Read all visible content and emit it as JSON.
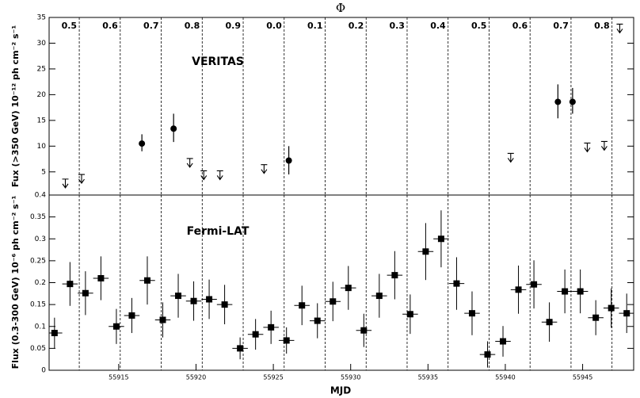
{
  "chart_data": [
    {
      "type": "scatter",
      "title": "VERITAS",
      "ylabel": "Fux (>350 GeV) 10⁻¹² ph cm⁻² s⁻¹",
      "top_axis_label": "Φ",
      "xlim": [
        55910.5,
        55948.3
      ],
      "ylim": [
        0.5,
        35
      ],
      "yticks": [
        5,
        10,
        15,
        20,
        25,
        30,
        35
      ],
      "phase_ticks": [
        {
          "value": 55912.45,
          "label": "0.5"
        },
        {
          "value": 55915.1,
          "label": "0.6"
        },
        {
          "value": 55917.75,
          "label": "0.7"
        },
        {
          "value": 55920.4,
          "label": "0.8"
        },
        {
          "value": 55923.05,
          "label": "0.9"
        },
        {
          "value": 55925.7,
          "label": "0.0"
        },
        {
          "value": 55928.35,
          "label": "0.1"
        },
        {
          "value": 55931.0,
          "label": "0.2"
        },
        {
          "value": 55933.65,
          "label": "0.3"
        },
        {
          "value": 55936.3,
          "label": "0.4"
        },
        {
          "value": 55938.95,
          "label": "0.5"
        },
        {
          "value": 55941.6,
          "label": "0.6"
        },
        {
          "value": 55944.25,
          "label": "0.7"
        },
        {
          "value": 55946.9,
          "label": "0.8"
        }
      ],
      "color": "#000000",
      "points": {
        "x": [
          55916.5,
          55918.55,
          55926.0,
          55943.4,
          55944.35
        ],
        "values": [
          10.5,
          13.4,
          7.2,
          18.6,
          18.6
        ],
        "err_low": [
          1.5,
          2.6,
          2.7,
          3.2,
          2.3
        ],
        "err_high": [
          1.8,
          2.9,
          2.8,
          3.4,
          2.7
        ]
      },
      "upper_limits": {
        "x": [
          55911.55,
          55912.6,
          55919.6,
          55920.5,
          55921.55,
          55924.4,
          55940.35,
          55945.3,
          55946.4,
          55947.4
        ],
        "values": [
          3.6,
          4.5,
          7.6,
          5.2,
          5.2,
          6.4,
          8.6,
          10.6,
          10.9,
          33.7
        ]
      }
    },
    {
      "type": "scatter",
      "title": "Fermi-LAT",
      "ylabel": "Flux (0.3-300 GeV) 10⁻⁶ ph cm⁻² s⁻¹",
      "xlabel": "MJD",
      "xlim": [
        55910.5,
        55948.3
      ],
      "xticks": [
        55915,
        55920,
        55925,
        55930,
        55935,
        55940,
        55945
      ],
      "ylim": [
        0,
        0.4
      ],
      "yticks": [
        0,
        0.05,
        0.1,
        0.15,
        0.2,
        0.25,
        0.3,
        0.35,
        0.4
      ],
      "color": "#000000",
      "xerr": 0.5,
      "x": [
        55910.85,
        55911.85,
        55912.85,
        55913.85,
        55914.85,
        55915.85,
        55916.85,
        55917.85,
        55918.85,
        55919.85,
        55920.85,
        55921.85,
        55922.85,
        55923.85,
        55924.85,
        55925.85,
        55926.85,
        55927.85,
        55928.85,
        55929.85,
        55930.85,
        55931.85,
        55932.85,
        55933.85,
        55934.85,
        55935.85,
        55936.85,
        55937.85,
        55938.85,
        55939.85,
        55940.85,
        55941.85,
        55942.85,
        55943.85,
        55944.85,
        55945.85,
        55946.85,
        55947.85
      ],
      "values": [
        0.085,
        0.197,
        0.176,
        0.21,
        0.1,
        0.125,
        0.205,
        0.115,
        0.17,
        0.158,
        0.162,
        0.15,
        0.05,
        0.082,
        0.098,
        0.068,
        0.148,
        0.113,
        0.157,
        0.188,
        0.091,
        0.17,
        0.217,
        0.128,
        0.271,
        0.3,
        0.198,
        0.13,
        0.036,
        0.066,
        0.184,
        0.196,
        0.11,
        0.18,
        0.18,
        0.12,
        0.142,
        0.13
      ],
      "errors": [
        0.035,
        0.05,
        0.05,
        0.05,
        0.04,
        0.04,
        0.055,
        0.04,
        0.05,
        0.045,
        0.045,
        0.045,
        0.025,
        0.035,
        0.038,
        0.03,
        0.045,
        0.04,
        0.045,
        0.05,
        0.038,
        0.05,
        0.055,
        0.045,
        0.065,
        0.065,
        0.06,
        0.05,
        0.03,
        0.035,
        0.055,
        0.055,
        0.045,
        0.05,
        0.05,
        0.04,
        0.045,
        0.045
      ]
    }
  ]
}
